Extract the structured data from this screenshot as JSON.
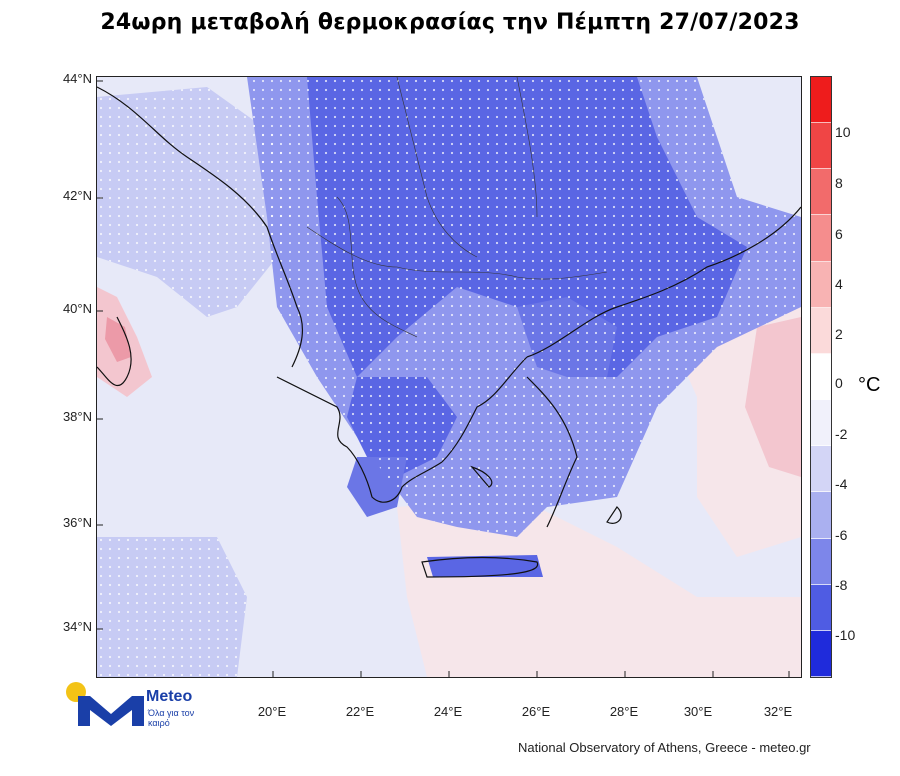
{
  "title": "24ωρη μεταβολή θερμοκρασίας την Πέμπτη 27/07/2023",
  "map": {
    "lat_labels": [
      "44°N",
      "42°N",
      "40°N",
      "38°N",
      "36°N",
      "34°N"
    ],
    "lon_labels": [
      "20°E",
      "22°E",
      "24°E",
      "26°E",
      "28°E",
      "30°E",
      "32°E"
    ]
  },
  "colorbar": {
    "ticks": [
      "10",
      "8",
      "6",
      "4",
      "2",
      "0",
      "-2",
      "-4",
      "-6",
      "-8",
      "-10"
    ],
    "unit": "°C",
    "colors": [
      "#ee1c1c",
      "#f04545",
      "#f26b6b",
      "#f58d8d",
      "#f8b3b3",
      "#fbdada",
      "#ffffff",
      "#f1f1fb",
      "#d3d5f6",
      "#aab0f0",
      "#7d86ea",
      "#4f5ce3",
      "#1f2bdb"
    ]
  },
  "logo": {
    "name": "Meteo",
    "tagline": "Όλα για τον καιρό"
  },
  "credit": "National Observatory of Athens, Greece - meteo.gr"
}
